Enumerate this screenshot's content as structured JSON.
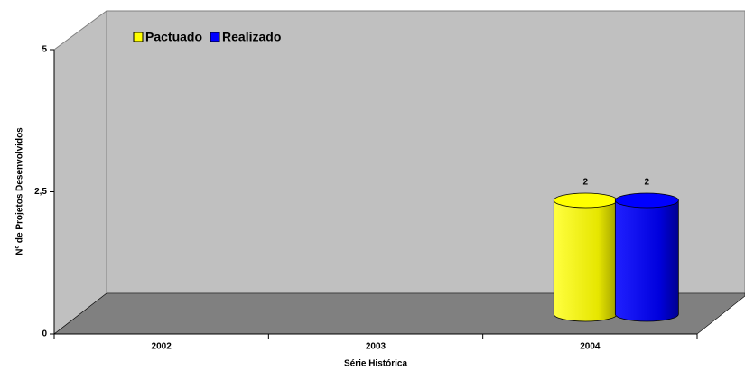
{
  "chart_data": {
    "type": "bar3d",
    "categories": [
      "2002",
      "2003",
      "2004"
    ],
    "series": [
      {
        "name": "Pactuado",
        "color": "#ffff00",
        "values": [
          null,
          null,
          2
        ]
      },
      {
        "name": "Realizado",
        "color": "#0000ff",
        "values": [
          null,
          null,
          2
        ]
      }
    ],
    "ylim": [
      0,
      5
    ],
    "yticks": [
      0,
      {
        "value": 2.5,
        "label": "2,5"
      },
      5
    ],
    "y_label": "Nº de Projetos Desenvolvidos",
    "x_label": "Série Histórica",
    "legend": "top-left"
  }
}
